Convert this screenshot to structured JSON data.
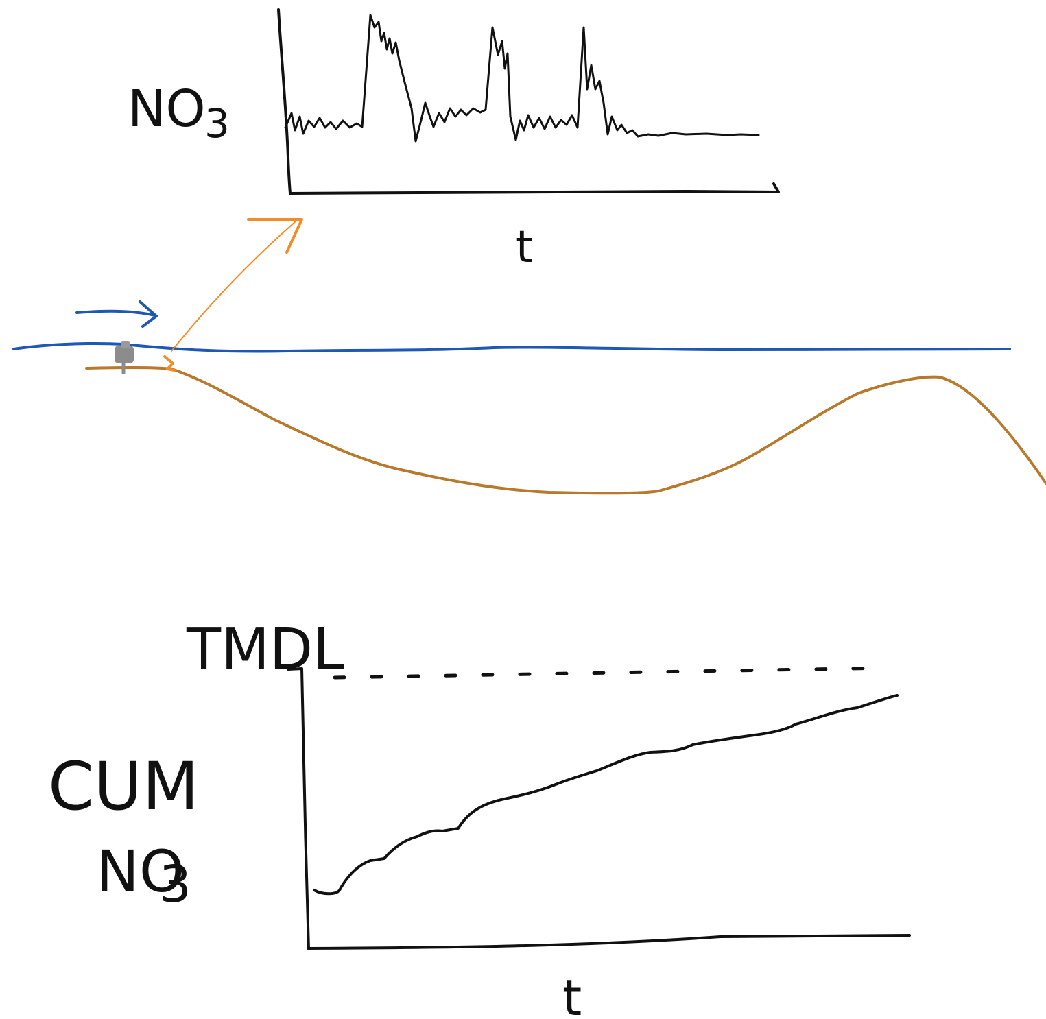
{
  "top_chart": {
    "y_label": "NO",
    "y_label_subscript": "3",
    "x_label": "t"
  },
  "bottom_chart": {
    "reference_label": "TMDL",
    "y_label_line1": "CUM",
    "y_label_line2": "NO",
    "y_label_subscript": "3",
    "x_label": "t"
  },
  "colors": {
    "ink": "#111111",
    "water": "#1f57b5",
    "streambed": "#b8792c",
    "orange_arrow": "#f28c28",
    "sensor": "#8c8c8c"
  },
  "icons": {
    "flow_arrow": "right-arrow-icon",
    "measurement_arrow": "diagonal-arrow-icon",
    "sensor": "sensor-icon"
  }
}
